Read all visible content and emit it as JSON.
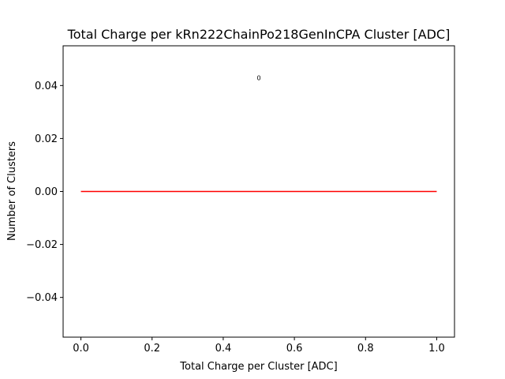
{
  "chart_data": {
    "type": "line",
    "title": "Total Charge per kRn222ChainPo218GenInCPA Cluster [ADC]",
    "xlabel": "Total Charge per Cluster [ADC]",
    "ylabel": "Number of Clusters",
    "xlim": [
      -0.05,
      1.05
    ],
    "ylim": [
      -0.055,
      0.055
    ],
    "xticks": [
      0.0,
      0.2,
      0.4,
      0.6,
      0.8,
      1.0
    ],
    "xtick_labels": [
      "0.0",
      "0.2",
      "0.4",
      "0.6",
      "0.8",
      "1.0"
    ],
    "yticks": [
      -0.04,
      -0.02,
      0.0,
      0.02,
      0.04
    ],
    "ytick_labels": [
      "−0.04",
      "−0.02",
      "0.00",
      "0.02",
      "0.04"
    ],
    "grid": false,
    "series": [
      {
        "color": "#ff0000",
        "x": [
          0.0,
          1.0
        ],
        "y": [
          0.0,
          0.0
        ]
      }
    ],
    "annotations": [
      {
        "text": "0",
        "x": 0.5,
        "y": 0.042
      }
    ]
  }
}
